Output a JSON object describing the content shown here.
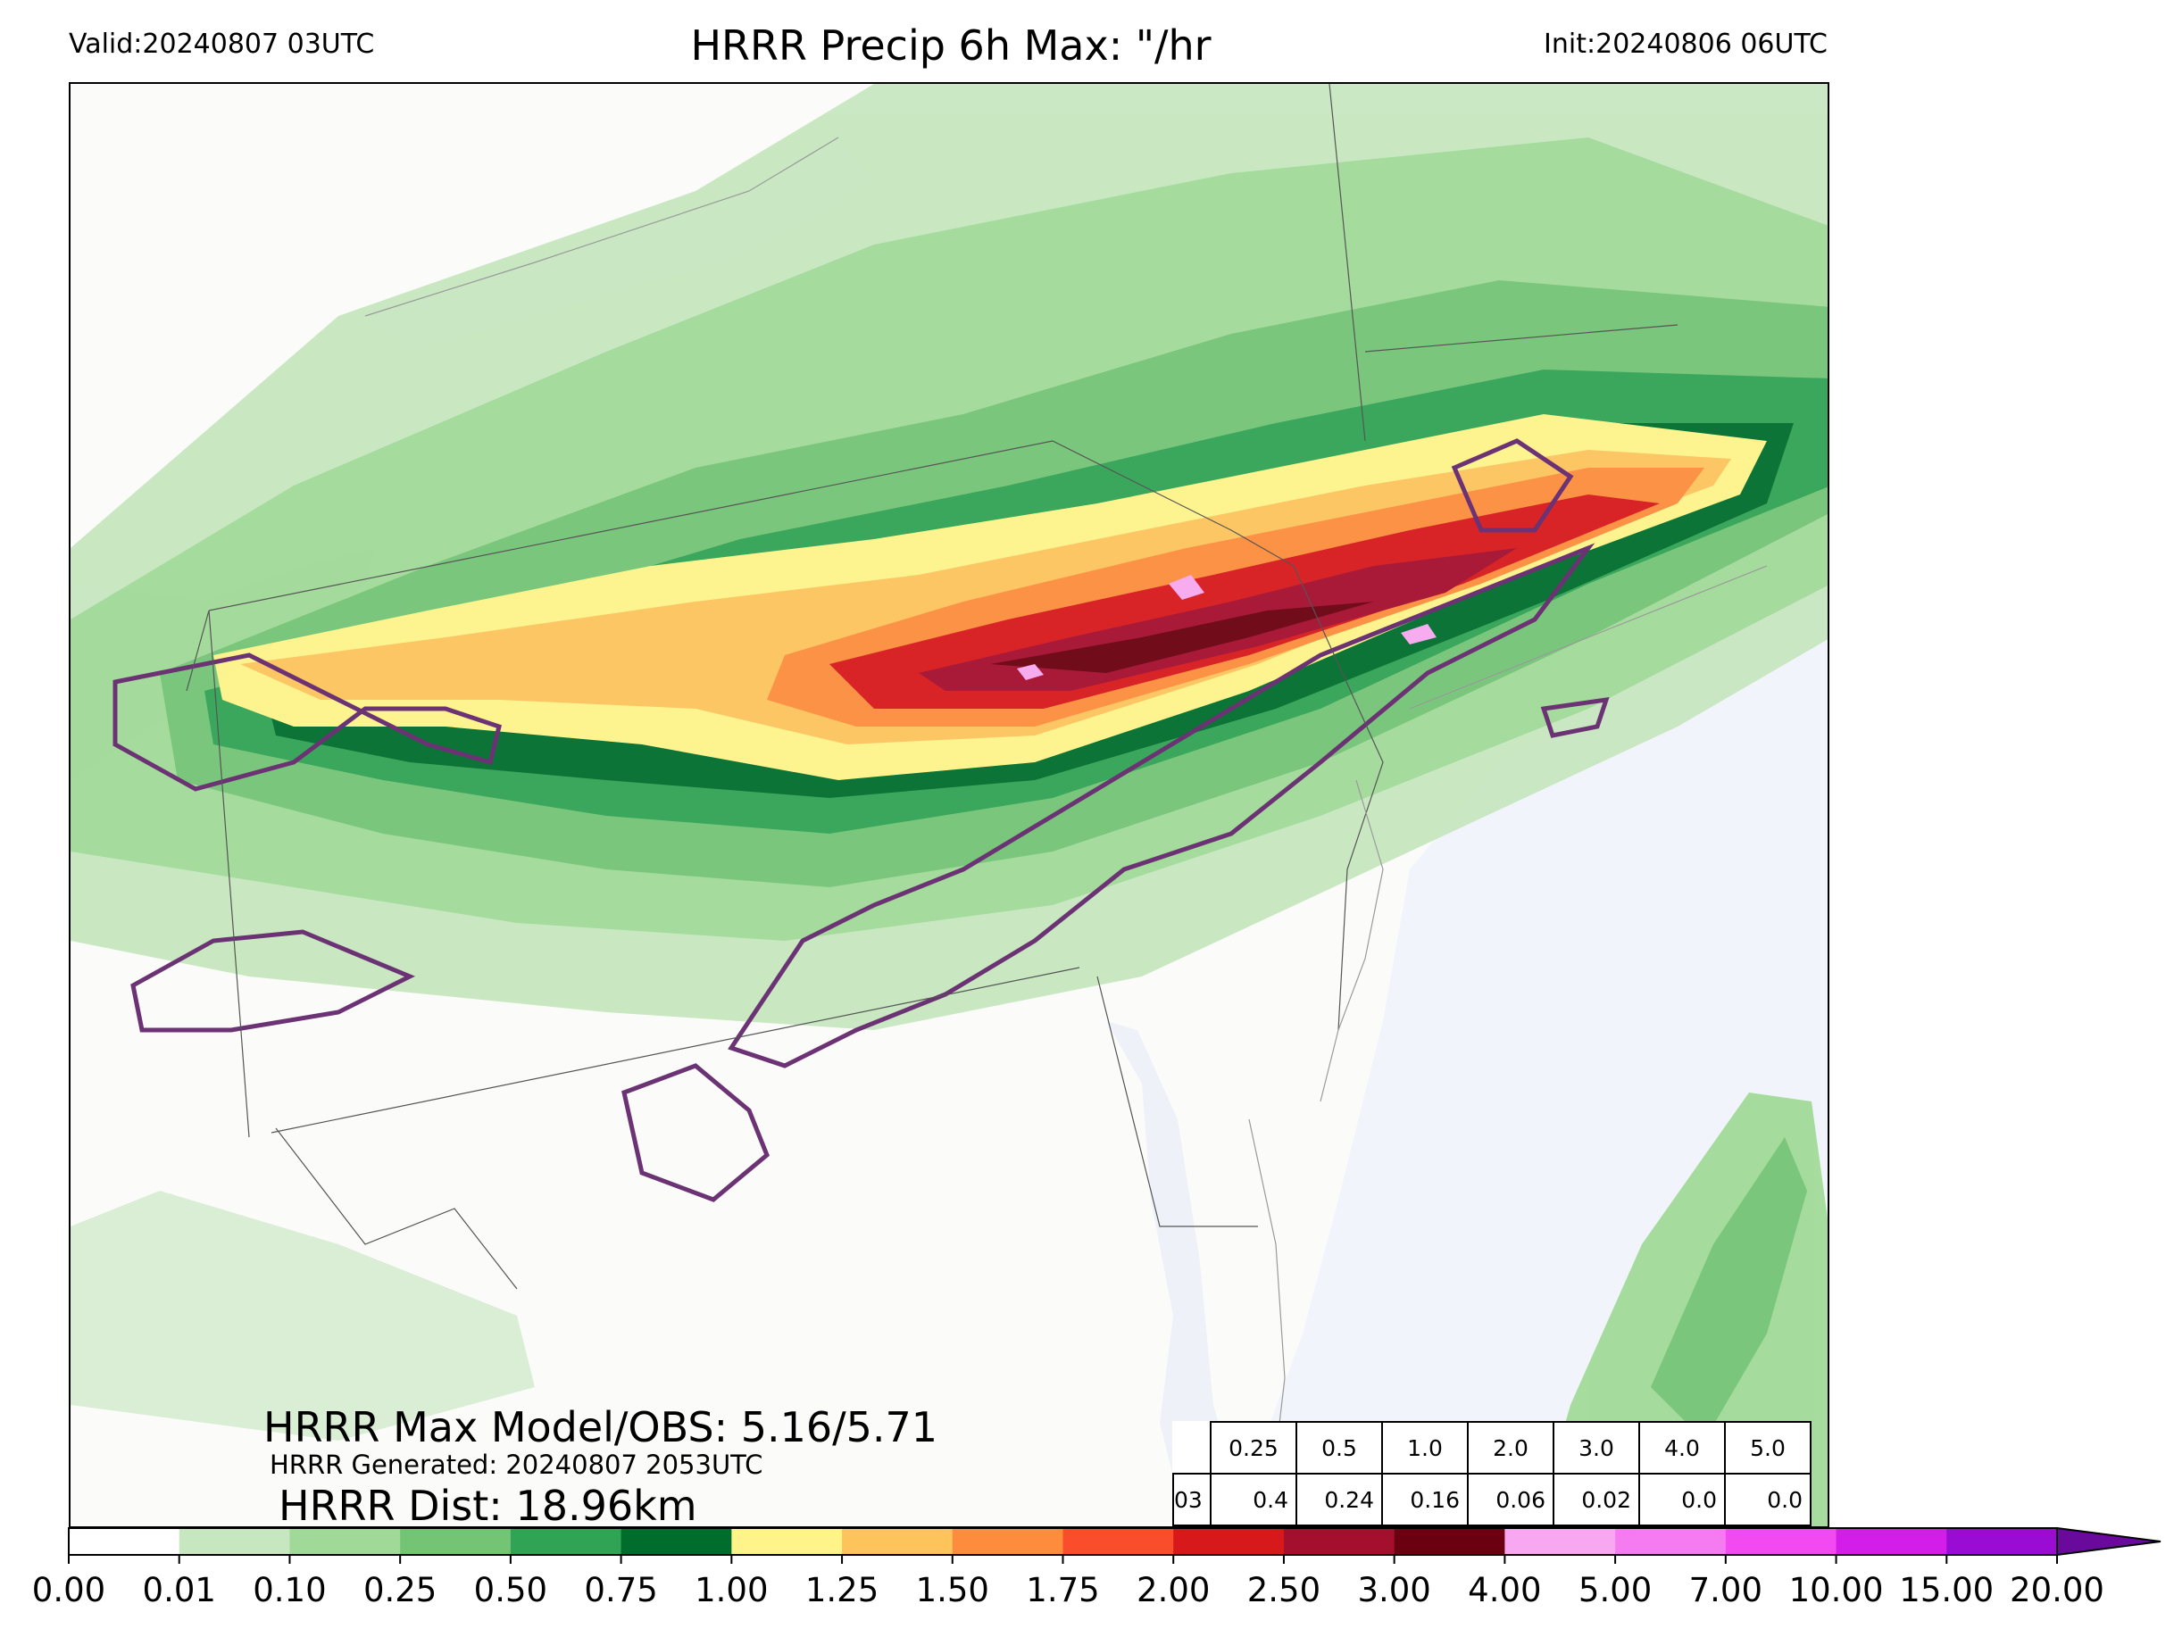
{
  "header": {
    "valid": "Valid:20240807 03UTC",
    "title": "HRRR Precip 6h Max: \"/hr",
    "init": "Init:20240806 06UTC"
  },
  "stats": {
    "max_line": "HRRR Max Model/OBS: 5.16/5.71",
    "generated": "HRRR Generated: 20240807 2053UTC",
    "dist": "HRRR Dist: 18.96km"
  },
  "threshold_table": {
    "header": [
      "0.25",
      "0.5",
      "1.0",
      "2.0",
      "3.0",
      "4.0",
      "5.0"
    ],
    "row_label": "03",
    "values": [
      "0.4",
      "0.24",
      "0.16",
      "0.06",
      "0.02",
      "0.0",
      "0.0"
    ]
  },
  "colorbar": {
    "ticks": [
      "0.00",
      "0.01",
      "0.10",
      "0.25",
      "0.50",
      "0.75",
      "1.00",
      "1.25",
      "1.50",
      "1.75",
      "2.00",
      "2.50",
      "3.00",
      "4.00",
      "5.00",
      "7.00",
      "10.00",
      "15.00",
      "20.00"
    ],
    "colors": [
      "#ffffff",
      "#c7e7c0",
      "#a1da98",
      "#74c476",
      "#31a354",
      "#006d2c",
      "#fef48a",
      "#fdc45c",
      "#fd8d3c",
      "#f94d2c",
      "#d7191c",
      "#a50f2e",
      "#6a0010",
      "#f8a8f0",
      "#f57cf0",
      "#f24af0",
      "#d21ee8",
      "#9a0bd4"
    ],
    "extend_color": "#6a0a9c"
  },
  "map_colors": {
    "ocean": "#f1f4fa",
    "land": "#fbfbfa",
    "lake": "#e8edf8",
    "obs_contour": "#6b3374",
    "border": "#555555"
  }
}
